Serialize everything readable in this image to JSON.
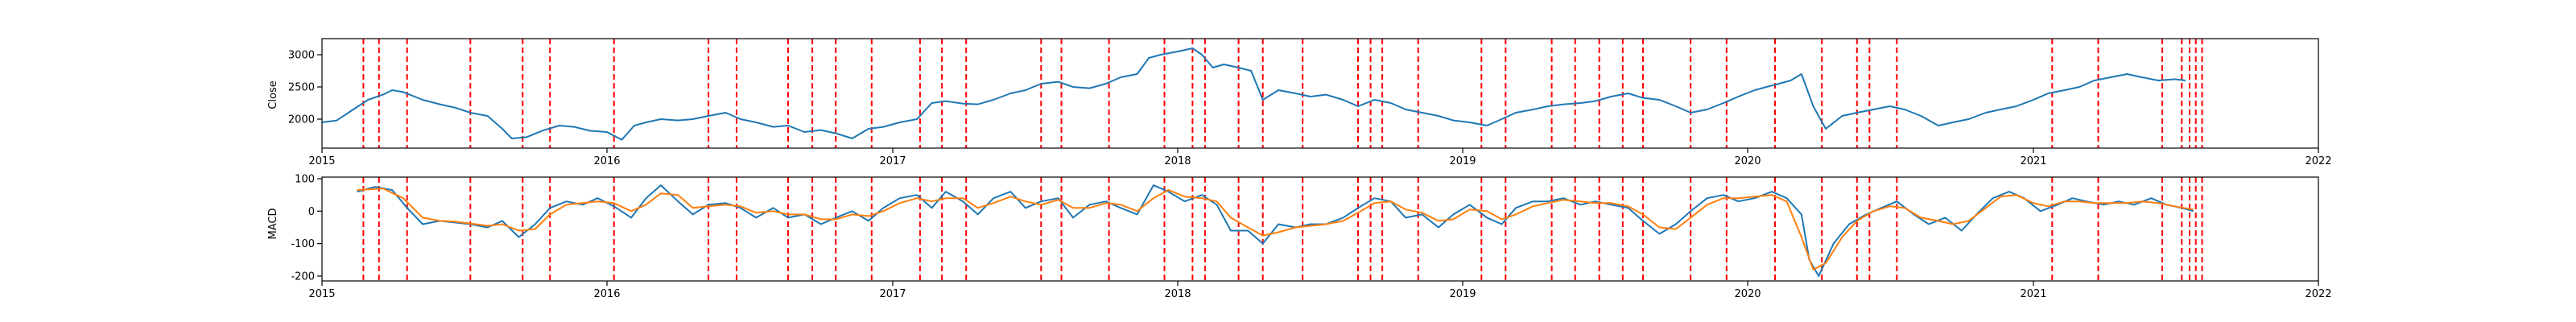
{
  "chart_data": [
    {
      "type": "line",
      "ylabel": "Close",
      "xlim": [
        "2015-01-01",
        "2022-01-01"
      ],
      "ylim": [
        1550,
        3250
      ],
      "yticks": [
        2000,
        2500,
        3000
      ],
      "xticks": [
        "2015",
        "2016",
        "2017",
        "2018",
        "2019",
        "2020",
        "2021",
        "2022"
      ],
      "series": [
        {
          "color": "#1f77b4",
          "x": [
            "2015-01-01",
            "2015-01-20",
            "2015-02-10",
            "2015-03-01",
            "2015-03-20",
            "2015-04-01",
            "2015-04-15",
            "2015-05-10",
            "2015-06-01",
            "2015-06-20",
            "2015-07-10",
            "2015-08-01",
            "2015-08-20",
            "2015-09-01",
            "2015-09-20",
            "2015-10-10",
            "2015-11-01",
            "2015-11-20",
            "2015-12-10",
            "2016-01-01",
            "2016-01-20",
            "2016-02-05",
            "2016-02-20",
            "2016-03-10",
            "2016-04-01",
            "2016-04-20",
            "2016-05-10",
            "2016-06-01",
            "2016-06-20",
            "2016-07-10",
            "2016-08-01",
            "2016-08-20",
            "2016-09-10",
            "2016-10-01",
            "2016-10-20",
            "2016-11-10",
            "2016-12-01",
            "2016-12-20",
            "2017-01-10",
            "2017-02-01",
            "2017-02-20",
            "2017-03-10",
            "2017-04-01",
            "2017-04-20",
            "2017-05-10",
            "2017-06-01",
            "2017-06-20",
            "2017-07-10",
            "2017-08-01",
            "2017-08-20",
            "2017-09-10",
            "2017-10-01",
            "2017-10-20",
            "2017-11-10",
            "2017-11-25",
            "2017-12-10",
            "2018-01-01",
            "2018-01-20",
            "2018-02-01",
            "2018-02-15",
            "2018-03-01",
            "2018-03-20",
            "2018-04-05",
            "2018-04-20",
            "2018-05-10",
            "2018-06-01",
            "2018-06-20",
            "2018-07-10",
            "2018-08-01",
            "2018-08-20",
            "2018-09-10",
            "2018-10-01",
            "2018-10-20",
            "2018-11-10",
            "2018-12-01",
            "2018-12-20",
            "2019-01-10",
            "2019-02-01",
            "2019-02-20",
            "2019-03-10",
            "2019-04-01",
            "2019-04-20",
            "2019-05-10",
            "2019-06-01",
            "2019-06-20",
            "2019-07-10",
            "2019-08-01",
            "2019-08-20",
            "2019-09-10",
            "2019-10-01",
            "2019-10-20",
            "2019-11-10",
            "2019-12-01",
            "2019-12-20",
            "2020-01-10",
            "2020-01-25",
            "2020-02-10",
            "2020-02-25",
            "2020-03-10",
            "2020-03-25",
            "2020-04-10",
            "2020-05-01",
            "2020-05-20",
            "2020-06-10",
            "2020-07-01",
            "2020-07-20",
            "2020-08-10",
            "2020-09-01",
            "2020-09-20",
            "2020-10-10",
            "2020-11-01",
            "2020-11-20",
            "2020-12-10",
            "2021-01-01",
            "2021-01-20",
            "2021-02-10",
            "2021-03-01",
            "2021-03-20",
            "2021-04-10",
            "2021-05-01",
            "2021-05-20",
            "2021-06-10",
            "2021-07-01",
            "2021-07-15"
          ],
          "values": [
            1950,
            1980,
            2150,
            2300,
            2380,
            2450,
            2420,
            2300,
            2230,
            2180,
            2100,
            2050,
            1850,
            1700,
            1720,
            1820,
            1900,
            1880,
            1820,
            1800,
            1680,
            1900,
            1950,
            2000,
            1980,
            2000,
            2050,
            2100,
            2000,
            1950,
            1880,
            1900,
            1800,
            1830,
            1780,
            1700,
            1850,
            1880,
            1950,
            2000,
            2250,
            2280,
            2240,
            2230,
            2300,
            2400,
            2450,
            2550,
            2580,
            2500,
            2480,
            2550,
            2650,
            2700,
            2950,
            3000,
            3050,
            3100,
            3000,
            2800,
            2850,
            2800,
            2750,
            2300,
            2450,
            2400,
            2350,
            2380,
            2300,
            2200,
            2300,
            2250,
            2150,
            2100,
            2050,
            1980,
            1950,
            1900,
            2000,
            2100,
            2150,
            2200,
            2230,
            2250,
            2280,
            2350,
            2400,
            2330,
            2300,
            2200,
            2100,
            2150,
            2250,
            2350,
            2450,
            2500,
            2550,
            2600,
            2700,
            2200,
            1850,
            2050,
            2100,
            2150,
            2200,
            2150,
            2050,
            1900,
            1950,
            2000,
            2100,
            2150,
            2200,
            2300,
            2400,
            2450,
            2500,
            2600,
            2650,
            2700,
            2650,
            2600,
            2620,
            2600
          ]
        }
      ],
      "vlines": [
        "2015-02-23",
        "2015-03-15",
        "2015-04-20",
        "2015-07-10",
        "2015-09-15",
        "2015-10-20",
        "2016-01-10",
        "2016-05-10",
        "2016-06-15",
        "2016-08-20",
        "2016-09-20",
        "2016-10-20",
        "2016-12-05",
        "2017-02-05",
        "2017-03-05",
        "2017-04-05",
        "2017-07-10",
        "2017-08-05",
        "2017-10-05",
        "2017-12-15",
        "2018-01-20",
        "2018-02-05",
        "2018-03-20",
        "2018-04-20",
        "2018-06-10",
        "2018-08-20",
        "2018-09-05",
        "2018-09-20",
        "2018-11-05",
        "2019-01-25",
        "2019-02-25",
        "2019-04-25",
        "2019-05-25",
        "2019-06-25",
        "2019-07-25",
        "2019-08-20",
        "2019-10-20",
        "2019-12-05",
        "2020-02-05",
        "2020-04-05",
        "2020-05-20",
        "2020-06-05",
        "2020-07-10",
        "2021-01-25",
        "2021-03-25",
        "2021-06-15",
        "2021-07-10",
        "2021-07-20",
        "2021-07-28",
        "2021-08-05"
      ]
    },
    {
      "type": "line",
      "ylabel": "MACD",
      "xlim": [
        "2015-01-01",
        "2022-01-01"
      ],
      "ylim": [
        -215,
        105
      ],
      "yticks": [
        100,
        0,
        -100,
        -200
      ],
      "xticks": [
        "2015",
        "2016",
        "2017",
        "2018",
        "2019",
        "2020",
        "2021",
        "2022"
      ],
      "series": [
        {
          "color": "#1f77b4",
          "x": [
            "2015-02-15",
            "2015-03-10",
            "2015-04-01",
            "2015-04-20",
            "2015-05-10",
            "2015-06-01",
            "2015-06-20",
            "2015-07-10",
            "2015-08-01",
            "2015-08-20",
            "2015-09-10",
            "2015-10-01",
            "2015-10-20",
            "2015-11-10",
            "2015-12-01",
            "2015-12-20",
            "2016-01-10",
            "2016-02-01",
            "2016-02-20",
            "2016-03-10",
            "2016-04-01",
            "2016-04-20",
            "2016-05-10",
            "2016-06-01",
            "2016-06-20",
            "2016-07-10",
            "2016-08-01",
            "2016-08-20",
            "2016-09-10",
            "2016-10-01",
            "2016-10-20",
            "2016-11-10",
            "2016-12-01",
            "2016-12-20",
            "2017-01-10",
            "2017-02-01",
            "2017-02-20",
            "2017-03-10",
            "2017-04-01",
            "2017-04-20",
            "2017-05-10",
            "2017-06-01",
            "2017-06-20",
            "2017-07-10",
            "2017-08-01",
            "2017-08-20",
            "2017-09-10",
            "2017-10-01",
            "2017-10-20",
            "2017-11-10",
            "2017-12-01",
            "2017-12-20",
            "2018-01-10",
            "2018-02-01",
            "2018-02-20",
            "2018-03-10",
            "2018-04-01",
            "2018-04-20",
            "2018-05-10",
            "2018-06-01",
            "2018-06-20",
            "2018-07-10",
            "2018-08-01",
            "2018-08-20",
            "2018-09-10",
            "2018-10-01",
            "2018-10-20",
            "2018-11-10",
            "2018-12-01",
            "2018-12-20",
            "2019-01-10",
            "2019-02-01",
            "2019-02-20",
            "2019-03-10",
            "2019-04-01",
            "2019-04-20",
            "2019-05-10",
            "2019-06-01",
            "2019-06-20",
            "2019-07-10",
            "2019-08-01",
            "2019-08-20",
            "2019-09-10",
            "2019-10-01",
            "2019-10-20",
            "2019-11-10",
            "2019-12-01",
            "2019-12-20",
            "2020-01-10",
            "2020-02-01",
            "2020-02-20",
            "2020-03-10",
            "2020-03-20",
            "2020-04-01",
            "2020-04-20",
            "2020-05-10",
            "2020-06-01",
            "2020-06-20",
            "2020-07-10",
            "2020-08-01",
            "2020-08-20",
            "2020-09-10",
            "2020-10-01",
            "2020-10-20",
            "2020-11-10",
            "2020-12-01",
            "2020-12-20",
            "2021-01-10",
            "2021-02-01",
            "2021-02-20",
            "2021-03-10",
            "2021-04-01",
            "2021-04-20",
            "2021-05-10",
            "2021-06-01",
            "2021-06-20",
            "2021-07-10",
            "2021-07-25"
          ],
          "values": [
            60,
            75,
            65,
            10,
            -40,
            -30,
            -35,
            -40,
            -50,
            -30,
            -80,
            -40,
            10,
            30,
            20,
            40,
            15,
            -20,
            40,
            80,
            30,
            -10,
            20,
            25,
            10,
            -20,
            10,
            -20,
            -10,
            -40,
            -20,
            0,
            -30,
            10,
            40,
            50,
            10,
            60,
            30,
            -10,
            40,
            60,
            10,
            30,
            40,
            -20,
            20,
            30,
            10,
            -10,
            80,
            60,
            30,
            50,
            20,
            -60,
            -60,
            -100,
            -40,
            -50,
            -40,
            -40,
            -20,
            10,
            40,
            30,
            -20,
            -10,
            -50,
            -10,
            20,
            -20,
            -40,
            10,
            30,
            30,
            40,
            20,
            30,
            20,
            10,
            -30,
            -70,
            -40,
            0,
            40,
            50,
            30,
            40,
            60,
            40,
            -10,
            -150,
            -200,
            -100,
            -40,
            -10,
            10,
            30,
            -10,
            -40,
            -20,
            -60,
            -10,
            40,
            60,
            40,
            0,
            20,
            40,
            30,
            20,
            30,
            20,
            40,
            20,
            10,
            0
          ]
        },
        {
          "color": "#ff7f0e",
          "x": [
            "2015-02-15",
            "2015-03-20",
            "2015-04-15",
            "2015-05-10",
            "2015-06-01",
            "2015-06-20",
            "2015-07-10",
            "2015-08-01",
            "2015-08-20",
            "2015-09-10",
            "2015-10-01",
            "2015-10-20",
            "2015-11-10",
            "2015-12-01",
            "2015-12-20",
            "2016-01-10",
            "2016-02-01",
            "2016-02-20",
            "2016-03-10",
            "2016-04-01",
            "2016-04-20",
            "2016-05-10",
            "2016-06-01",
            "2016-06-20",
            "2016-07-10",
            "2016-08-01",
            "2016-08-20",
            "2016-09-10",
            "2016-10-01",
            "2016-10-20",
            "2016-11-10",
            "2016-12-01",
            "2016-12-20",
            "2017-01-10",
            "2017-02-01",
            "2017-02-20",
            "2017-03-10",
            "2017-04-01",
            "2017-04-20",
            "2017-05-10",
            "2017-06-01",
            "2017-06-20",
            "2017-07-10",
            "2017-08-01",
            "2017-08-20",
            "2017-09-10",
            "2017-10-01",
            "2017-10-20",
            "2017-11-10",
            "2017-12-01",
            "2017-12-20",
            "2018-01-10",
            "2018-02-01",
            "2018-02-20",
            "2018-03-10",
            "2018-04-01",
            "2018-04-20",
            "2018-05-10",
            "2018-06-01",
            "2018-06-20",
            "2018-07-10",
            "2018-08-01",
            "2018-08-20",
            "2018-09-10",
            "2018-10-01",
            "2018-10-20",
            "2018-11-10",
            "2018-12-01",
            "2018-12-20",
            "2019-01-10",
            "2019-02-01",
            "2019-02-20",
            "2019-03-10",
            "2019-04-01",
            "2019-04-20",
            "2019-05-10",
            "2019-06-01",
            "2019-06-20",
            "2019-07-10",
            "2019-08-01",
            "2019-08-20",
            "2019-09-10",
            "2019-10-01",
            "2019-10-20",
            "2019-11-10",
            "2019-12-01",
            "2019-12-20",
            "2020-01-10",
            "2020-02-01",
            "2020-02-20",
            "2020-03-10",
            "2020-03-25",
            "2020-04-10",
            "2020-05-01",
            "2020-05-20",
            "2020-06-10",
            "2020-07-01",
            "2020-07-20",
            "2020-08-10",
            "2020-09-01",
            "2020-09-20",
            "2020-10-10",
            "2020-11-01",
            "2020-11-20",
            "2020-12-10",
            "2021-01-01",
            "2021-01-20",
            "2021-02-10",
            "2021-03-01",
            "2021-03-20",
            "2021-04-10",
            "2021-05-01",
            "2021-05-20",
            "2021-06-10",
            "2021-07-01",
            "2021-07-25"
          ],
          "values": [
            65,
            70,
            40,
            -20,
            -30,
            -32,
            -38,
            -45,
            -40,
            -60,
            -55,
            -10,
            20,
            25,
            30,
            25,
            0,
            20,
            55,
            50,
            10,
            15,
            20,
            15,
            -5,
            0,
            -10,
            -10,
            -25,
            -25,
            -10,
            -15,
            0,
            25,
            40,
            30,
            40,
            40,
            10,
            25,
            45,
            30,
            20,
            35,
            10,
            10,
            25,
            20,
            0,
            40,
            65,
            45,
            40,
            30,
            -20,
            -50,
            -75,
            -65,
            -50,
            -45,
            -40,
            -30,
            -5,
            25,
            30,
            5,
            -5,
            -30,
            -25,
            5,
            0,
            -25,
            -10,
            15,
            25,
            35,
            30,
            25,
            25,
            15,
            -10,
            -50,
            -55,
            -20,
            20,
            40,
            40,
            45,
            50,
            30,
            -80,
            -180,
            -160,
            -80,
            -30,
            0,
            15,
            10,
            -20,
            -30,
            -40,
            -30,
            10,
            45,
            50,
            25,
            15,
            30,
            30,
            25,
            25,
            25,
            30,
            25,
            15,
            5
          ]
        }
      ],
      "vlines": [
        "2015-02-23",
        "2015-03-15",
        "2015-04-20",
        "2015-07-10",
        "2015-09-15",
        "2015-10-20",
        "2016-01-10",
        "2016-05-10",
        "2016-06-15",
        "2016-08-20",
        "2016-09-20",
        "2016-10-20",
        "2016-12-05",
        "2017-02-05",
        "2017-03-05",
        "2017-04-05",
        "2017-07-10",
        "2017-08-05",
        "2017-10-05",
        "2017-12-15",
        "2018-01-20",
        "2018-02-05",
        "2018-03-20",
        "2018-04-20",
        "2018-06-10",
        "2018-08-20",
        "2018-09-05",
        "2018-09-20",
        "2018-11-05",
        "2019-01-25",
        "2019-02-25",
        "2019-04-25",
        "2019-05-25",
        "2019-06-25",
        "2019-07-25",
        "2019-08-20",
        "2019-10-20",
        "2019-12-05",
        "2020-02-05",
        "2020-04-05",
        "2020-05-20",
        "2020-06-05",
        "2020-07-10",
        "2021-01-25",
        "2021-03-25",
        "2021-06-15",
        "2021-07-10",
        "2021-07-20",
        "2021-07-28",
        "2021-08-05"
      ]
    }
  ]
}
